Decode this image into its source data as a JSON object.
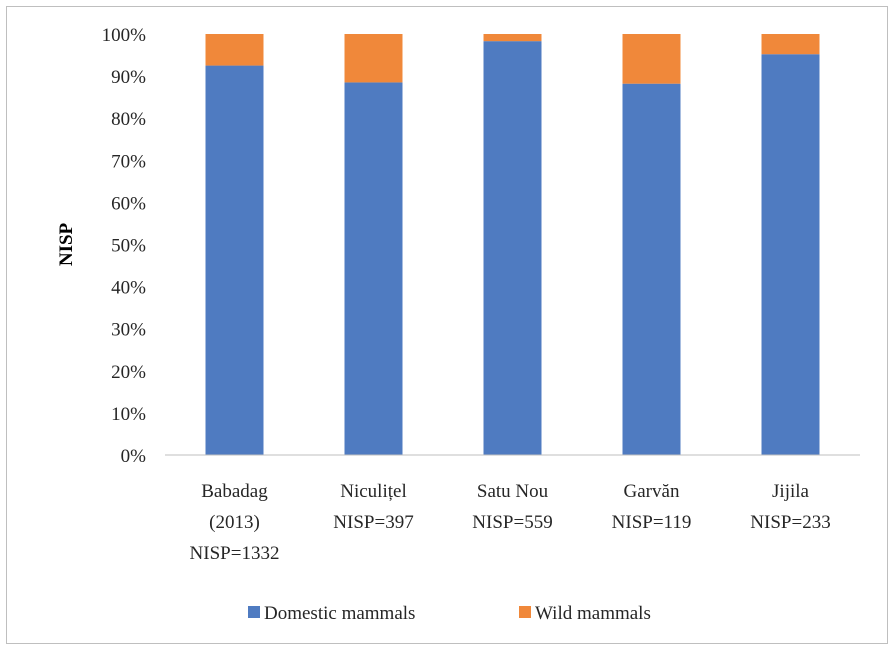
{
  "chart_data": {
    "type": "bar",
    "stacked": true,
    "percent": true,
    "categories": [
      [
        "Babadag",
        "(2013)",
        "NISP=1332"
      ],
      [
        "Niculițel",
        "NISP=397"
      ],
      [
        "Satu Nou",
        "NISP=559"
      ],
      [
        "Garvăn",
        "NISP=119"
      ],
      [
        "Jijila",
        "NISP=233"
      ]
    ],
    "series": [
      {
        "name": "Domestic mammals",
        "color": "#4f7bc1",
        "values": [
          92.5,
          88.5,
          98.3,
          88.2,
          95.2
        ]
      },
      {
        "name": "Wild mammals",
        "color": "#f0883a",
        "values": [
          7.5,
          11.5,
          1.7,
          11.8,
          4.8
        ]
      }
    ],
    "ylabel": "NISP",
    "ylim": [
      0,
      100
    ],
    "yticks": [
      "0%",
      "10%",
      "20%",
      "30%",
      "40%",
      "50%",
      "60%",
      "70%",
      "80%",
      "90%",
      "100%"
    ],
    "grid": false,
    "legend_position": "bottom"
  }
}
